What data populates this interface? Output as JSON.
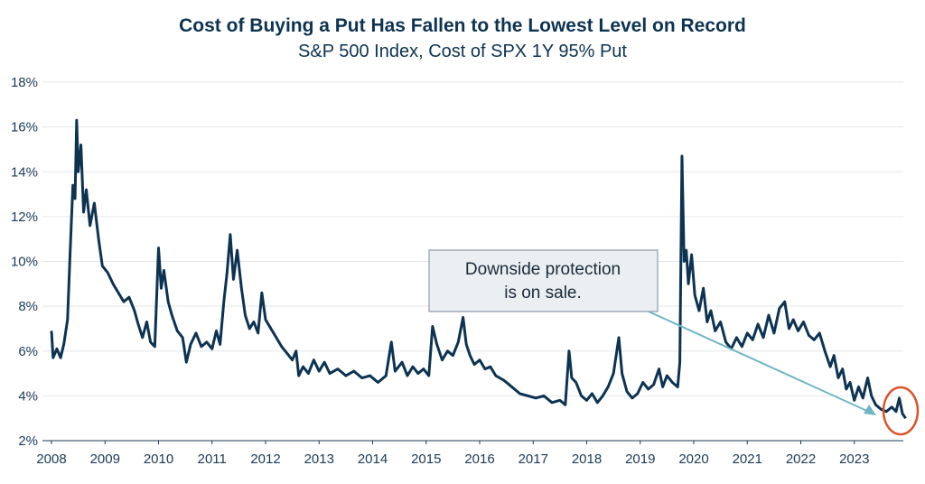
{
  "chart_data": {
    "type": "line",
    "title": "Cost of Buying a Put Has Fallen to the Lowest Level on Record",
    "subtitle": "S&P 500 Index, Cost of SPX 1Y 95% Put",
    "annotation": [
      "Downside protection",
      "is on sale."
    ],
    "xlim": [
      2008,
      2024
    ],
    "xticks": [
      2008,
      2009,
      2010,
      2011,
      2012,
      2013,
      2014,
      2015,
      2016,
      2017,
      2018,
      2019,
      2020,
      2021,
      2022,
      2023
    ],
    "ylim": [
      2,
      18
    ],
    "yticks": [
      {
        "value": 2,
        "label": "2%"
      },
      {
        "value": 4,
        "label": "4%"
      },
      {
        "value": 6,
        "label": "6%"
      },
      {
        "value": 8,
        "label": "8%"
      },
      {
        "value": 10,
        "label": "10%"
      },
      {
        "value": 12,
        "label": "12%"
      },
      {
        "value": 14,
        "label": "14%"
      },
      {
        "value": 16,
        "label": "16%"
      },
      {
        "value": 18,
        "label": "18%"
      }
    ],
    "grid": true,
    "highlight_color": "#d9542b",
    "arrow_color": "#6fb7c4",
    "series": [
      {
        "color": "#0d3352",
        "x": [
          2008.0,
          2008.03,
          2008.1,
          2008.17,
          2008.23,
          2008.3,
          2008.35,
          2008.4,
          2008.44,
          2008.47,
          2008.5,
          2008.55,
          2008.6,
          2008.65,
          2008.72,
          2008.8,
          2008.88,
          2008.95,
          2009.05,
          2009.15,
          2009.25,
          2009.35,
          2009.45,
          2009.55,
          2009.62,
          2009.7,
          2009.78,
          2009.85,
          2009.93,
          2010.0,
          2010.05,
          2010.1,
          2010.18,
          2010.25,
          2010.35,
          2010.45,
          2010.52,
          2010.6,
          2010.7,
          2010.8,
          2010.9,
          2011.0,
          2011.08,
          2011.15,
          2011.22,
          2011.28,
          2011.34,
          2011.4,
          2011.47,
          2011.55,
          2011.62,
          2011.7,
          2011.78,
          2011.86,
          2011.93,
          2012.0,
          2012.1,
          2012.2,
          2012.3,
          2012.4,
          2012.5,
          2012.57,
          2012.62,
          2012.7,
          2012.8,
          2012.9,
          2013.0,
          2013.1,
          2013.2,
          2013.35,
          2013.5,
          2013.65,
          2013.8,
          2013.95,
          2014.1,
          2014.25,
          2014.35,
          2014.42,
          2014.55,
          2014.65,
          2014.75,
          2014.85,
          2014.95,
          2015.05,
          2015.12,
          2015.2,
          2015.3,
          2015.4,
          2015.5,
          2015.6,
          2015.69,
          2015.75,
          2015.82,
          2015.9,
          2016.0,
          2016.1,
          2016.2,
          2016.3,
          2016.45,
          2016.6,
          2016.75,
          2016.9,
          2017.05,
          2017.2,
          2017.35,
          2017.5,
          2017.6,
          2017.67,
          2017.72,
          2017.8,
          2017.9,
          2018.0,
          2018.1,
          2018.2,
          2018.3,
          2018.4,
          2018.5,
          2018.6,
          2018.66,
          2018.75,
          2018.85,
          2018.95,
          2019.05,
          2019.15,
          2019.25,
          2019.35,
          2019.42,
          2019.5,
          2019.6,
          2019.7,
          2019.74,
          2019.78,
          2019.82,
          2019.86,
          2019.9,
          2019.96,
          2020.02,
          2020.1,
          2020.18,
          2020.25,
          2020.32,
          2020.4,
          2020.5,
          2020.6,
          2020.7,
          2020.8,
          2020.9,
          2021.0,
          2021.1,
          2021.2,
          2021.3,
          2021.4,
          2021.5,
          2021.6,
          2021.7,
          2021.78,
          2021.86,
          2021.95,
          2022.05,
          2022.15,
          2022.25,
          2022.35,
          2022.45,
          2022.55,
          2022.62,
          2022.7,
          2022.78,
          2022.85,
          2022.92,
          2023.0,
          2023.08,
          2023.16,
          2023.25,
          2023.32,
          2023.4,
          2023.5,
          2023.6,
          2023.7,
          2023.78,
          2023.84,
          2023.9,
          2023.96
        ],
        "values": [
          6.9,
          5.7,
          6.1,
          5.7,
          6.3,
          7.4,
          10.5,
          13.4,
          12.8,
          16.3,
          14.0,
          15.2,
          12.2,
          13.2,
          11.6,
          12.6,
          11.0,
          9.8,
          9.5,
          9.0,
          8.6,
          8.2,
          8.4,
          7.8,
          7.2,
          6.6,
          7.3,
          6.4,
          6.2,
          10.6,
          8.8,
          9.6,
          8.2,
          7.6,
          6.9,
          6.6,
          5.5,
          6.3,
          6.8,
          6.2,
          6.4,
          6.1,
          6.9,
          6.3,
          8.2,
          9.5,
          11.2,
          9.2,
          10.5,
          8.8,
          7.6,
          7.0,
          7.3,
          6.8,
          8.6,
          7.4,
          7.0,
          6.6,
          6.2,
          5.9,
          5.6,
          6.0,
          4.9,
          5.3,
          5.0,
          5.6,
          5.1,
          5.5,
          5.0,
          5.2,
          4.9,
          5.1,
          4.8,
          4.9,
          4.6,
          4.9,
          6.4,
          5.1,
          5.5,
          4.9,
          5.3,
          5.0,
          5.2,
          4.9,
          7.1,
          6.3,
          5.6,
          6.0,
          5.8,
          6.4,
          7.5,
          6.3,
          5.8,
          5.4,
          5.6,
          5.2,
          5.3,
          4.9,
          4.7,
          4.4,
          4.1,
          4.0,
          3.9,
          4.0,
          3.7,
          3.8,
          3.6,
          6.0,
          4.8,
          4.6,
          4.0,
          3.8,
          4.1,
          3.7,
          4.0,
          4.4,
          5.0,
          6.6,
          5.0,
          4.2,
          3.9,
          4.1,
          4.6,
          4.3,
          4.5,
          5.2,
          4.4,
          4.9,
          4.6,
          4.4,
          5.5,
          14.7,
          10.0,
          10.5,
          9.0,
          10.3,
          8.5,
          7.8,
          8.8,
          7.3,
          7.8,
          6.9,
          7.3,
          6.4,
          6.1,
          6.6,
          6.2,
          6.8,
          6.5,
          7.2,
          6.6,
          7.6,
          6.8,
          7.9,
          8.2,
          7.0,
          7.4,
          6.9,
          7.3,
          6.7,
          6.5,
          6.8,
          6.0,
          5.3,
          5.8,
          4.8,
          5.2,
          4.3,
          4.6,
          3.8,
          4.4,
          3.9,
          4.8,
          4.0,
          3.6,
          3.4,
          3.3,
          3.5,
          3.3,
          3.9,
          3.2,
          3.0
        ]
      }
    ]
  }
}
